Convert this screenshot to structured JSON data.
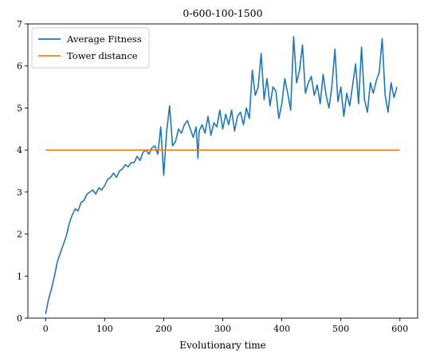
{
  "chart_data": {
    "type": "line",
    "title": "0-600-100-1500",
    "xlabel": "Evolutionary time",
    "ylabel": "",
    "xlim": [
      -30,
      630
    ],
    "ylim": [
      0,
      7
    ],
    "xticks": [
      0,
      100,
      200,
      300,
      400,
      500,
      600
    ],
    "yticks": [
      0,
      1,
      2,
      3,
      4,
      5,
      6,
      7
    ],
    "grid": false,
    "legend_position": "top-left",
    "series": [
      {
        "name": "Average Fitness",
        "color": "#1f77b4",
        "x": [
          0,
          5,
          10,
          15,
          20,
          25,
          30,
          35,
          40,
          45,
          50,
          55,
          60,
          65,
          70,
          75,
          80,
          85,
          90,
          95,
          100,
          105,
          110,
          115,
          120,
          125,
          130,
          135,
          140,
          145,
          150,
          155,
          160,
          165,
          170,
          175,
          180,
          185,
          190,
          195,
          200,
          205,
          210,
          215,
          220,
          225,
          230,
          235,
          240,
          245,
          250,
          255,
          258,
          260,
          265,
          270,
          275,
          280,
          285,
          290,
          295,
          300,
          305,
          310,
          315,
          320,
          325,
          330,
          335,
          340,
          345,
          350,
          355,
          360,
          365,
          370,
          375,
          380,
          385,
          390,
          395,
          400,
          405,
          410,
          415,
          420,
          425,
          430,
          435,
          440,
          445,
          450,
          455,
          460,
          465,
          470,
          475,
          480,
          485,
          490,
          495,
          500,
          505,
          510,
          515,
          520,
          525,
          530,
          535,
          540,
          545,
          550,
          555,
          560,
          565,
          570,
          575,
          580,
          585,
          590,
          595
        ],
        "y": [
          0.1,
          0.45,
          0.7,
          1.0,
          1.35,
          1.55,
          1.75,
          1.95,
          2.25,
          2.45,
          2.6,
          2.55,
          2.75,
          2.8,
          2.95,
          3.0,
          3.05,
          2.95,
          3.1,
          3.05,
          3.15,
          3.3,
          3.35,
          3.45,
          3.35,
          3.5,
          3.55,
          3.65,
          3.6,
          3.7,
          3.7,
          3.85,
          3.75,
          3.95,
          4.0,
          3.9,
          4.05,
          4.1,
          3.9,
          4.55,
          3.4,
          4.45,
          5.05,
          4.1,
          4.2,
          4.5,
          4.4,
          4.6,
          4.7,
          4.5,
          4.3,
          4.55,
          3.8,
          4.45,
          4.6,
          4.4,
          4.8,
          4.35,
          4.65,
          4.55,
          4.95,
          4.5,
          4.85,
          4.6,
          4.95,
          4.45,
          4.8,
          4.9,
          4.6,
          5.0,
          4.75,
          5.9,
          5.3,
          5.5,
          6.3,
          5.2,
          5.7,
          5.05,
          5.5,
          5.4,
          4.75,
          5.1,
          5.7,
          5.35,
          4.95,
          6.7,
          5.6,
          5.9,
          6.5,
          5.35,
          5.6,
          5.75,
          5.3,
          5.55,
          5.1,
          5.8,
          5.3,
          5.0,
          5.55,
          6.4,
          5.15,
          5.5,
          4.8,
          5.35,
          5.05,
          5.55,
          6.05,
          5.1,
          6.45,
          5.2,
          4.9,
          5.6,
          5.35,
          5.65,
          5.85,
          6.65,
          5.3,
          4.9,
          5.6,
          5.25,
          5.5
        ]
      },
      {
        "name": "Tower distance",
        "color": "#ff7f0e",
        "x": [
          0,
          600
        ],
        "y": [
          4,
          4
        ]
      }
    ]
  }
}
